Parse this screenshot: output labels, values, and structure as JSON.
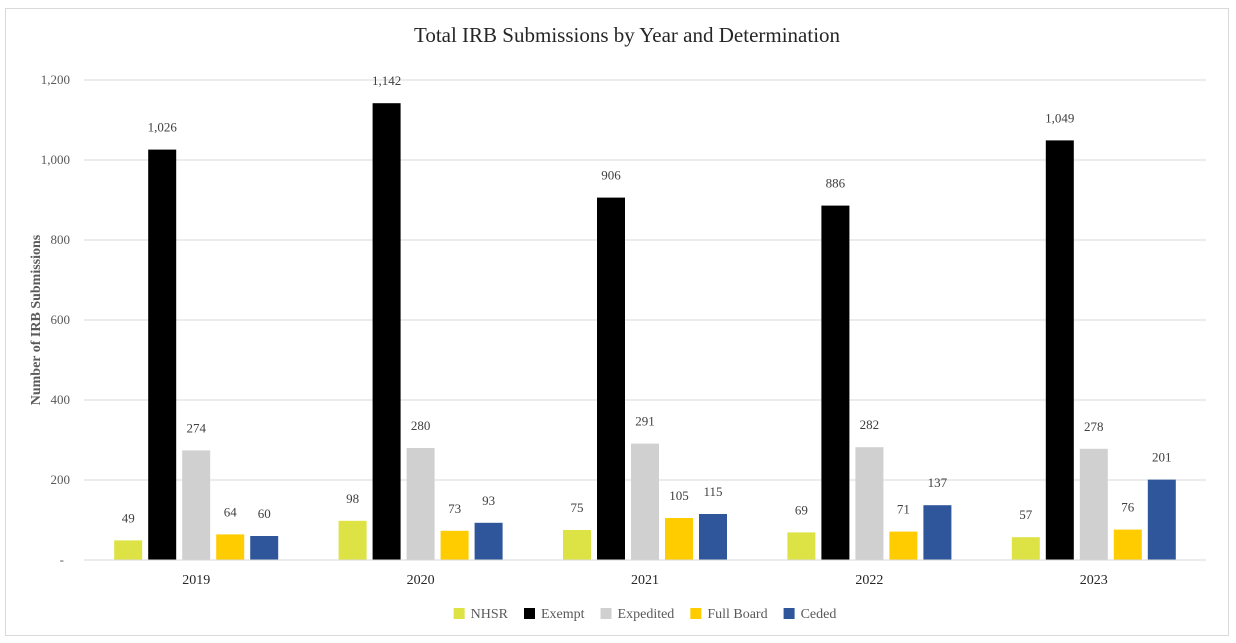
{
  "chart_data": {
    "type": "bar",
    "title": "Total IRB Submissions by Year and Determination",
    "xlabel": "",
    "ylabel": "Number of IRB Submissions",
    "ylim": [
      0,
      1200
    ],
    "yticks": [
      0,
      200,
      400,
      600,
      800,
      1000,
      1200
    ],
    "ytick_labels": [
      "-",
      "200",
      "400",
      "600",
      "800",
      "1,000",
      "1,200"
    ],
    "grid": true,
    "legend_position": "bottom",
    "categories": [
      "2019",
      "2020",
      "2021",
      "2022",
      "2023"
    ],
    "series": [
      {
        "name": "NHSR",
        "color": "#dde344",
        "values": [
          49,
          98,
          75,
          69,
          57
        ],
        "labels": [
          "49",
          "98",
          "75",
          "69",
          "57"
        ]
      },
      {
        "name": "Exempt",
        "color": "#000000",
        "values": [
          1026,
          1142,
          906,
          886,
          1049
        ],
        "labels": [
          "1,026",
          "1,142",
          "906",
          "886",
          "1,049"
        ]
      },
      {
        "name": "Expedited",
        "color": "#d0d0d0",
        "values": [
          274,
          280,
          291,
          282,
          278
        ],
        "labels": [
          "274",
          "280",
          "291",
          "282",
          "278"
        ]
      },
      {
        "name": "Full Board",
        "color": "#ffcc00",
        "values": [
          64,
          73,
          105,
          71,
          76
        ],
        "labels": [
          "64",
          "73",
          "105",
          "71",
          "76"
        ]
      },
      {
        "name": "Ceded",
        "color": "#2f569b",
        "values": [
          60,
          93,
          115,
          137,
          201
        ],
        "labels": [
          "60",
          "93",
          "115",
          "137",
          "201"
        ]
      }
    ]
  }
}
